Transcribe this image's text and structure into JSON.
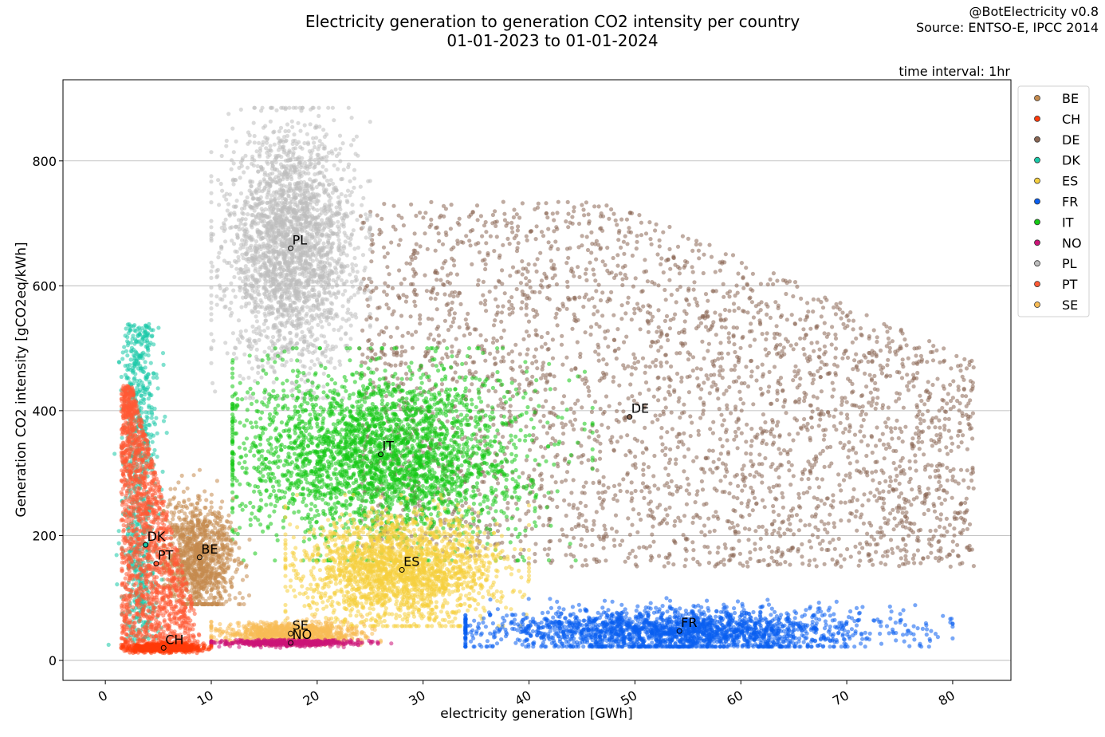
{
  "header": {
    "title_line1": "Electricity generation to generation CO2 intensity per country",
    "title_line2": "01-01-2023 to 01-01-2024",
    "credit": "@BotElectricity v0.8",
    "source": "Source: ENTSO-E, IPCC 2014",
    "interval": "time interval: 1hr"
  },
  "chart_data": {
    "type": "scatter",
    "xlabel": "electricity generation [GWh]",
    "ylabel": "Generation CO2 intensity [gCO2eq/kWh]",
    "xlim": [
      -4,
      85.5
    ],
    "ylim": [
      -32,
      930
    ],
    "xticks": [
      0,
      10,
      20,
      30,
      40,
      50,
      60,
      70,
      80
    ],
    "yticks": [
      0,
      200,
      400,
      600,
      800
    ],
    "grid": "horizontal",
    "legend_position": "outside-right",
    "series": [
      {
        "name": "BE",
        "color": "#c48a4e",
        "median": [
          8.9,
          165
        ],
        "x_range": [
          5.5,
          14
        ],
        "y_range": [
          90,
          305
        ]
      },
      {
        "name": "CH",
        "color": "#ff3a0a",
        "median": [
          5.5,
          20
        ],
        "x_range": [
          1.5,
          10
        ],
        "y_range": [
          12,
          30
        ]
      },
      {
        "name": "DE",
        "color": "#8a6653",
        "median": [
          49.5,
          390
        ],
        "x_range": [
          24,
          82
        ],
        "y_range": [
          150,
          735
        ]
      },
      {
        "name": "DK",
        "color": "#19c9a8",
        "median": [
          3.8,
          185
        ],
        "x_range": [
          1,
          5
        ],
        "y_range": [
          20,
          540
        ]
      },
      {
        "name": "ES",
        "color": "#f5cf3e",
        "median": [
          28,
          145
        ],
        "x_range": [
          17,
          40
        ],
        "y_range": [
          55,
          265
        ]
      },
      {
        "name": "FR",
        "color": "#0a5ff0",
        "median": [
          54.2,
          47
        ],
        "x_range": [
          34,
          80
        ],
        "y_range": [
          22,
          110
        ]
      },
      {
        "name": "IT",
        "color": "#15c915",
        "median": [
          26,
          330
        ],
        "x_range": [
          12,
          46
        ],
        "y_range": [
          160,
          500
        ]
      },
      {
        "name": "NO",
        "color": "#cc1478",
        "median": [
          17.5,
          28
        ],
        "x_range": [
          10,
          27
        ],
        "y_range": [
          20,
          33
        ]
      },
      {
        "name": "PL",
        "color": "#bdbdbd",
        "median": [
          17.5,
          660
        ],
        "x_range": [
          10,
          25
        ],
        "y_range": [
          420,
          885
        ]
      },
      {
        "name": "PT",
        "color": "#ff5a35",
        "median": [
          4.8,
          155
        ],
        "x_range": [
          1,
          12
        ],
        "y_range": [
          15,
          440
        ]
      },
      {
        "name": "SE",
        "color": "#f7bb55",
        "median": [
          17.5,
          43
        ],
        "x_range": [
          10,
          26
        ],
        "y_range": [
          25,
          70
        ]
      }
    ]
  }
}
